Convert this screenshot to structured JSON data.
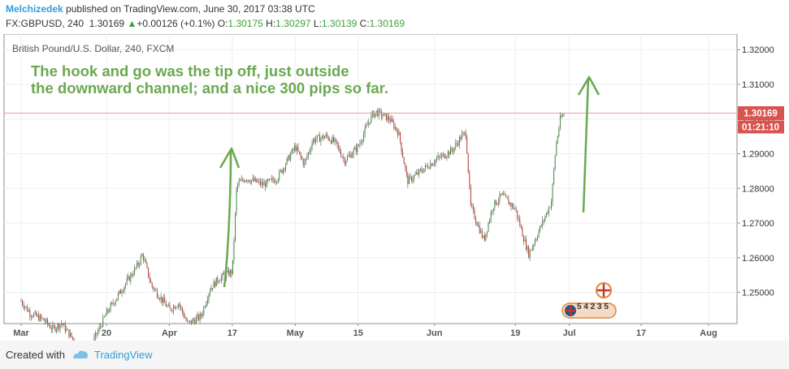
{
  "header": {
    "user": "Melchizedek",
    "published": "published on TradingView.com, June 30, 2017 03:38 UTC",
    "symbol": "FX:GBPUSD, 240",
    "last": "1.30169",
    "change": "+0.00126 (+0.1%)",
    "o_label": "O:",
    "o_value": "1.30175",
    "h_label": "H:",
    "h_value": "1.30297",
    "l_label": "L:",
    "l_value": "1.30139",
    "c_label": "C:",
    "c_value": "1.30169"
  },
  "chart": {
    "legend": "British Pound/U.S. Dollar, 240, FXCM",
    "annotation_line1": "The hook and go was the tip off, just outside",
    "annotation_line2": "the downward channel; and a nice 300 pips so far.",
    "price_tag": "1.30169",
    "countdown_tag": "01:21:10",
    "event_numbers": "5 4 2 3 5",
    "colors": {
      "up": "#3f8a3f",
      "down": "#c0392b",
      "wick": "#555555",
      "annotation": "#6aa84f",
      "price_tag_bg": "#d9534f",
      "price_line": "#e8a09a"
    }
  },
  "chart_data": {
    "type": "candlestick",
    "title": "British Pound/U.S. Dollar, 240, FXCM",
    "ylim": [
      1.241,
      1.3245
    ],
    "y_ticks": [
      "1.32000",
      "1.31000",
      "1.30000",
      "1.29000",
      "1.28000",
      "1.27000",
      "1.26000",
      "1.25000"
    ],
    "x_ticks": [
      "Mar",
      "20",
      "Apr",
      "17",
      "May",
      "15",
      "Jun",
      "19",
      "Jul",
      "17",
      "Aug"
    ],
    "x_tick_dates": [
      "2017-03-01",
      "2017-03-20",
      "2017-04-03",
      "2017-04-17",
      "2017-05-01",
      "2017-05-15",
      "2017-06-01",
      "2017-06-19",
      "2017-07-01",
      "2017-07-17",
      "2017-08-01"
    ],
    "price_path": [
      [
        "2017-03-01",
        1.2475
      ],
      [
        "2017-03-03",
        1.244
      ],
      [
        "2017-03-06",
        1.242
      ],
      [
        "2017-03-08",
        1.2395
      ],
      [
        "2017-03-10",
        1.241
      ],
      [
        "2017-03-14",
        1.234
      ],
      [
        "2017-03-16",
        1.233
      ],
      [
        "2017-03-20",
        1.244
      ],
      [
        "2017-03-22",
        1.248
      ],
      [
        "2017-03-23",
        1.25
      ],
      [
        "2017-03-27",
        1.258
      ],
      [
        "2017-03-28",
        1.261
      ],
      [
        "2017-03-30",
        1.252
      ],
      [
        "2017-04-03",
        1.245
      ],
      [
        "2017-04-05",
        1.247
      ],
      [
        "2017-04-07",
        1.241
      ],
      [
        "2017-04-10",
        1.243
      ],
      [
        "2017-04-12",
        1.251
      ],
      [
        "2017-04-14",
        1.254
      ],
      [
        "2017-04-17",
        1.256
      ],
      [
        "2017-04-18",
        1.281
      ],
      [
        "2017-04-20",
        1.283
      ],
      [
        "2017-04-24",
        1.281
      ],
      [
        "2017-04-27",
        1.283
      ],
      [
        "2017-05-01",
        1.292
      ],
      [
        "2017-05-03",
        1.287
      ],
      [
        "2017-05-05",
        1.294
      ],
      [
        "2017-05-08",
        1.295
      ],
      [
        "2017-05-10",
        1.293
      ],
      [
        "2017-05-12",
        1.288
      ],
      [
        "2017-05-15",
        1.292
      ],
      [
        "2017-05-18",
        1.301
      ],
      [
        "2017-05-19",
        1.302
      ],
      [
        "2017-05-22",
        1.3
      ],
      [
        "2017-05-24",
        1.296
      ],
      [
        "2017-05-26",
        1.282
      ],
      [
        "2017-05-29",
        1.285
      ],
      [
        "2017-06-01",
        1.288
      ],
      [
        "2017-06-05",
        1.291
      ],
      [
        "2017-06-07",
        1.295
      ],
      [
        "2017-06-08",
        1.296
      ],
      [
        "2017-06-09",
        1.275
      ],
      [
        "2017-06-12",
        1.265
      ],
      [
        "2017-06-14",
        1.275
      ],
      [
        "2017-06-16",
        1.278
      ],
      [
        "2017-06-19",
        1.274
      ],
      [
        "2017-06-21",
        1.265
      ],
      [
        "2017-06-22",
        1.261
      ],
      [
        "2017-06-26",
        1.273
      ],
      [
        "2017-06-27",
        1.276
      ],
      [
        "2017-06-28",
        1.292
      ],
      [
        "2017-06-29",
        1.3
      ],
      [
        "2017-06-30",
        1.30169
      ]
    ],
    "last_price": 1.30169
  }
}
